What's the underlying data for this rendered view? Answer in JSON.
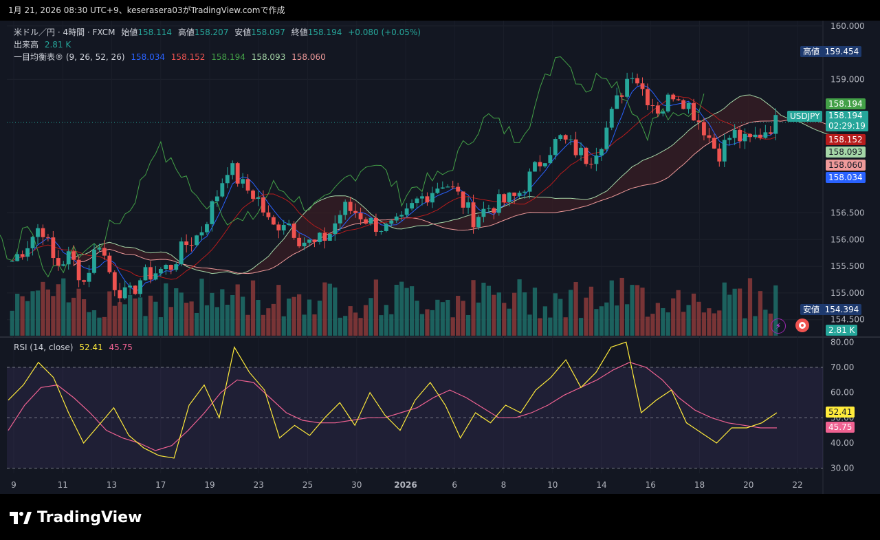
{
  "header": {
    "caption": "1月 21, 2026 08:30 UTC+9、keserasera03がTradingView.comで作成"
  },
  "legend": {
    "symbol": "米ドル／円 · 4時間 · FXCM",
    "open_label": "始値",
    "open": "158.114",
    "high_label": "高値",
    "high": "158.207",
    "low_label": "安値",
    "low": "158.097",
    "close_label": "終値",
    "close": "158.194",
    "change": "+0.080 (+0.05%)",
    "volume_label": "出来高",
    "volume": "2.81 K",
    "ichimoku_label": "一目均衡表® (9, 26, 52, 26)",
    "ichimoku_values": [
      "158.034",
      "158.152",
      "158.194",
      "158.093",
      "158.060"
    ],
    "rsi_label": "RSI (14, close)",
    "rsi_values": [
      "52.41",
      "45.75"
    ]
  },
  "price_tags": {
    "high_label": "高値",
    "high_value": "159.454",
    "low_label": "安値",
    "low_value": "154.394",
    "symbol_tag": "USDJPY",
    "last_price": "158.194",
    "countdown": "02:29:19",
    "volume_tag": "2.81 K"
  },
  "colors": {
    "background": "#131722",
    "up": "#26a69a",
    "down": "#ef5350",
    "tenkan": "#2962ff",
    "kijun": "#b71c1c",
    "chikou": "#43a047",
    "span_a": "#a5d6a7",
    "span_b": "#ef9a9a",
    "rsi": "#ffeb3b",
    "rsi_ma": "#f06292"
  },
  "brand": {
    "name": "TradingView"
  },
  "chart_data": [
    {
      "type": "candlestick",
      "title": "米ドル／円 · 4時間 · FXCM",
      "y_ticks": [
        "160.000",
        "159.000",
        "156.500",
        "156.000",
        "155.500",
        "155.000",
        "154.500"
      ],
      "ylim": [
        154.2,
        160.1
      ],
      "x_ticks": [
        "9",
        "11",
        "13",
        "17",
        "19",
        "23",
        "25",
        "30",
        "2026",
        "6",
        "8",
        "10",
        "14",
        "16",
        "18",
        "20",
        "22"
      ],
      "period_high": 159.454,
      "period_low": 154.394,
      "last": 158.194,
      "series_anchor_close": [
        155.6,
        155.9,
        156.3,
        155.5,
        155.7,
        155.2,
        156.0,
        155.2,
        154.9,
        155.3,
        155.4,
        155.5,
        155.9,
        156.1,
        156.7,
        157.4,
        157.0,
        156.8,
        156.2,
        156.4,
        156.0,
        155.9,
        156.1,
        156.6,
        156.5,
        156.3,
        156.2,
        156.3,
        156.7,
        156.9,
        157.1,
        156.8,
        156.4,
        156.6,
        156.7,
        156.8,
        157.2,
        157.6,
        157.9,
        157.7,
        157.5,
        157.9,
        158.6,
        159.2,
        158.7,
        158.4,
        158.8,
        158.5,
        158.1,
        157.6,
        158.0,
        157.8,
        158.0,
        158.2
      ]
    },
    {
      "type": "line",
      "title": "RSI (14, close)",
      "y_ticks": [
        "80.00",
        "70.00",
        "60.00",
        "50.00",
        "40.00",
        "30.00"
      ],
      "ylim": [
        28,
        82
      ],
      "series": [
        {
          "name": "RSI",
          "values": [
            57,
            63,
            72,
            66,
            52,
            40,
            47,
            54,
            43,
            38,
            35,
            34,
            55,
            63,
            50,
            78,
            68,
            61,
            42,
            47,
            43,
            50,
            56,
            47,
            60,
            51,
            45,
            57,
            64,
            55,
            42,
            52,
            48,
            55,
            52,
            61,
            66,
            73,
            62,
            68,
            78,
            80,
            52,
            57,
            61,
            48,
            44,
            40,
            46,
            46,
            48,
            52
          ]
        },
        {
          "name": "RSI MA",
          "values": [
            45,
            55,
            62,
            63,
            58,
            52,
            45,
            42,
            40,
            37,
            39,
            45,
            52,
            60,
            65,
            64,
            58,
            52,
            49,
            48,
            48,
            49,
            50,
            50,
            52,
            54,
            58,
            61,
            58,
            54,
            50,
            50,
            52,
            55,
            59,
            62,
            65,
            69,
            72,
            70,
            65,
            58,
            53,
            50,
            48,
            47,
            46,
            46
          ]
        }
      ],
      "current": {
        "RSI": 52.41,
        "RSI MA": 45.75
      }
    }
  ]
}
